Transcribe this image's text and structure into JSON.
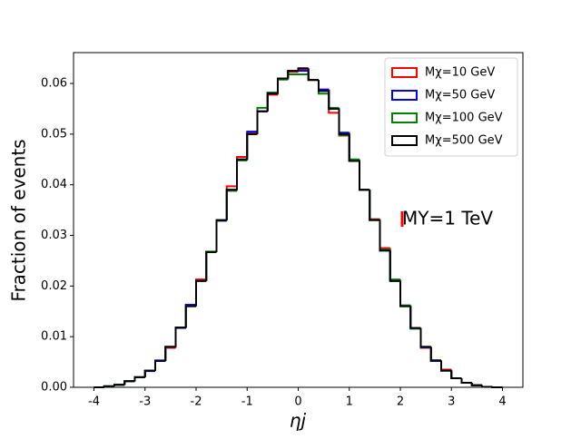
{
  "chart_data": {
    "type": "histogram",
    "xlabel": "ηj",
    "ylabel": "Fraction of events",
    "annotation": "MY=1 TeV",
    "bins": [
      -4.0,
      -3.8,
      -3.6,
      -3.4,
      -3.2,
      -3.0,
      -2.8,
      -2.6,
      -2.4,
      -2.2,
      -2.0,
      -1.8,
      -1.6,
      -1.4,
      -1.2,
      -1.0,
      -0.8,
      -0.6,
      -0.4,
      -0.2,
      0.0,
      0.2,
      0.4,
      0.6,
      0.8,
      1.0,
      1.2,
      1.4,
      1.6,
      1.8,
      2.0,
      2.2,
      2.4,
      2.6,
      2.8,
      3.0,
      3.2,
      3.4,
      3.6,
      3.8,
      4.0
    ],
    "series": [
      {
        "name": "Mχ=10 GeV",
        "color": "#ff0000",
        "values": [
          0.0,
          0.0002,
          0.0005,
          0.0012,
          0.002,
          0.0033,
          0.0052,
          0.0078,
          0.0118,
          0.0162,
          0.0213,
          0.0267,
          0.033,
          0.0397,
          0.0455,
          0.0502,
          0.0545,
          0.0578,
          0.061,
          0.0623,
          0.0627,
          0.0607,
          0.0588,
          0.0542,
          0.0497,
          0.0448,
          0.039,
          0.0332,
          0.0275,
          0.0212,
          0.016,
          0.0117,
          0.0078,
          0.0053,
          0.0035,
          0.0018,
          0.0009,
          0.0004,
          0.0001,
          0.0
        ]
      },
      {
        "name": "Mχ=50 GeV",
        "color": "#0000ff",
        "values": [
          0.0,
          0.0002,
          0.0005,
          0.0012,
          0.002,
          0.0032,
          0.0053,
          0.008,
          0.0117,
          0.0163,
          0.021,
          0.0267,
          0.0329,
          0.039,
          0.045,
          0.0505,
          0.0545,
          0.0582,
          0.0608,
          0.0625,
          0.0625,
          0.0607,
          0.0588,
          0.055,
          0.0503,
          0.0447,
          0.039,
          0.0331,
          0.027,
          0.021,
          0.0161,
          0.0116,
          0.0079,
          0.0052,
          0.0033,
          0.0018,
          0.0009,
          0.0004,
          0.0001,
          0.0
        ]
      },
      {
        "name": "Mχ=100 GeV",
        "color": "#008000",
        "values": [
          0.0,
          0.0002,
          0.0005,
          0.0012,
          0.002,
          0.0033,
          0.0052,
          0.008,
          0.0118,
          0.016,
          0.021,
          0.0268,
          0.033,
          0.0388,
          0.0448,
          0.05,
          0.0552,
          0.0582,
          0.0608,
          0.0618,
          0.0618,
          0.0607,
          0.058,
          0.0552,
          0.0498,
          0.045,
          0.039,
          0.0331,
          0.0272,
          0.0213,
          0.0162,
          0.0116,
          0.008,
          0.0053,
          0.0033,
          0.0018,
          0.0009,
          0.0004,
          0.0001,
          0.0
        ]
      },
      {
        "name": "Mχ=500 GeV",
        "color": "#000000",
        "values": [
          0.0,
          0.0002,
          0.0005,
          0.0012,
          0.002,
          0.0033,
          0.0052,
          0.008,
          0.0118,
          0.016,
          0.021,
          0.0267,
          0.033,
          0.039,
          0.045,
          0.05,
          0.0545,
          0.058,
          0.061,
          0.0625,
          0.063,
          0.0607,
          0.0585,
          0.055,
          0.05,
          0.0447,
          0.039,
          0.033,
          0.027,
          0.021,
          0.016,
          0.0117,
          0.008,
          0.0053,
          0.0033,
          0.0018,
          0.0009,
          0.0004,
          0.0001,
          0.0
        ]
      }
    ],
    "xlim": [
      -4.4,
      4.4
    ],
    "ylim": [
      0,
      0.0661
    ],
    "xticks": [
      -4,
      -3,
      -2,
      -1,
      0,
      1,
      2,
      3,
      4
    ],
    "yticks": [
      {
        "value": 0,
        "label": "0.00"
      },
      {
        "value": 0.01,
        "label": "0.01"
      },
      {
        "value": 0.02,
        "label": "0.02"
      },
      {
        "value": 0.03,
        "label": "0.03"
      },
      {
        "value": 0.04,
        "label": "0.04"
      },
      {
        "value": 0.05,
        "label": "0.05"
      },
      {
        "value": 0.06,
        "label": "0.06"
      }
    ],
    "grid": false,
    "legend": "upper right"
  }
}
